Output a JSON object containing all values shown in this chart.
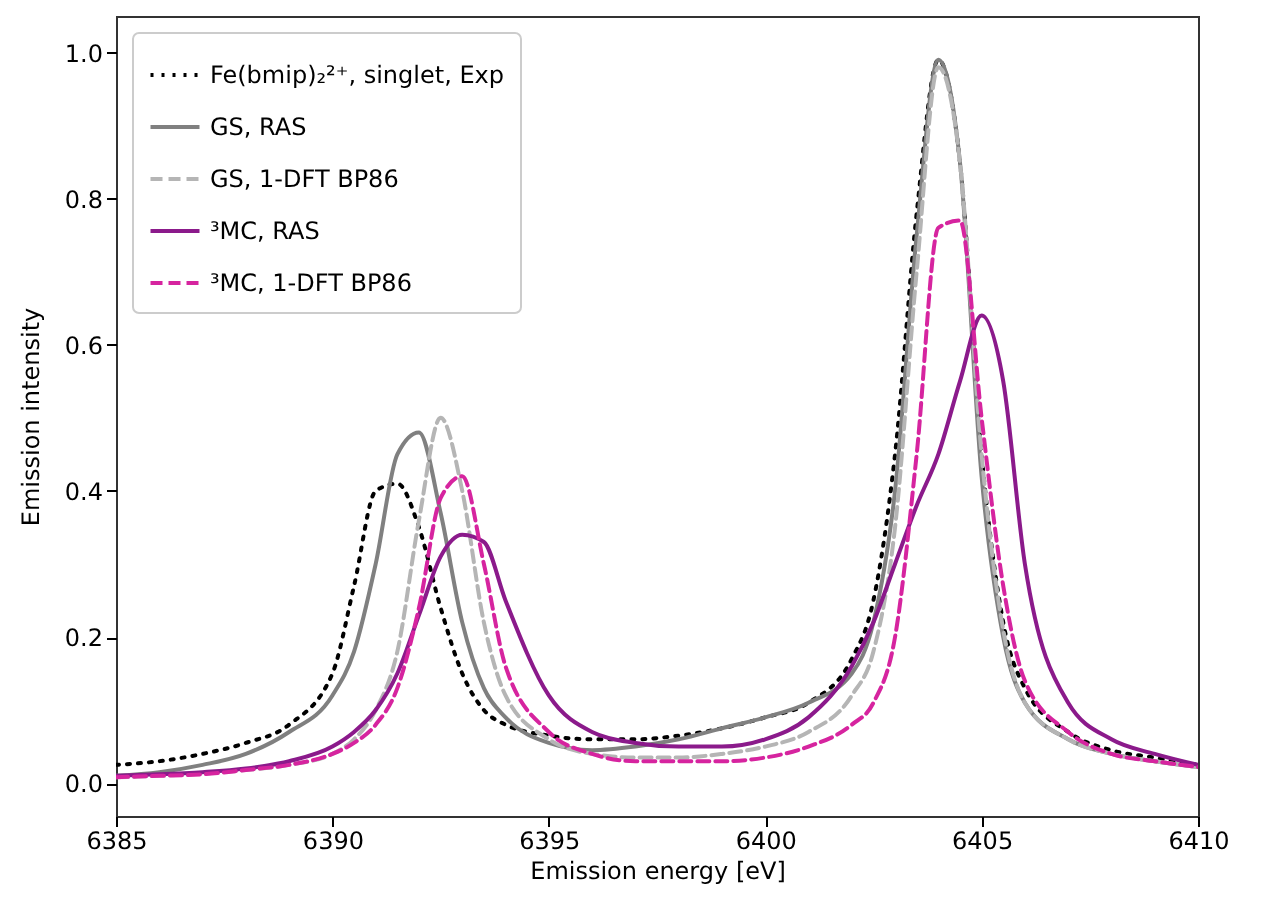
{
  "chart_data": {
    "type": "line",
    "xlabel": "Emission energy [eV]",
    "ylabel": "Emission intensity",
    "xlim": [
      6385,
      6410
    ],
    "xticks": [
      6385,
      6390,
      6395,
      6400,
      6405,
      6410
    ],
    "ylim": [
      -0.045,
      1.05
    ],
    "yticks": [
      {
        "value": 0,
        "label": "0.0"
      },
      {
        "value": 0.2,
        "label": "0.2"
      },
      {
        "value": 0.4,
        "label": "0.4"
      },
      {
        "value": 0.6,
        "label": "0.6"
      },
      {
        "value": 0.8,
        "label": "0.8"
      },
      {
        "value": 1,
        "label": "1.0"
      }
    ],
    "grid": false,
    "legend": "top left",
    "series": [
      {
        "name": "Fe(bmip)₂²⁺, singlet, Exp",
        "color": "#000000",
        "line_style": "dotted",
        "x": [
          6385,
          6386,
          6387,
          6388,
          6389,
          6390,
          6390.5,
          6391,
          6391.5,
          6392,
          6392.5,
          6393,
          6393.5,
          6394,
          6395,
          6396,
          6397,
          6398,
          6399,
          6400,
          6401,
          6402,
          6402.5,
          6403,
          6403.5,
          6404,
          6404.5,
          6405,
          6405.5,
          6406,
          6407,
          6408,
          6409,
          6410
        ],
        "values": [
          0.025,
          0.03,
          0.04,
          0.055,
          0.08,
          0.15,
          0.27,
          0.4,
          0.41,
          0.35,
          0.24,
          0.15,
          0.1,
          0.08,
          0.065,
          0.06,
          0.06,
          0.065,
          0.075,
          0.09,
          0.11,
          0.17,
          0.25,
          0.45,
          0.78,
          0.99,
          0.85,
          0.45,
          0.22,
          0.13,
          0.07,
          0.045,
          0.035,
          0.025
        ]
      },
      {
        "name": "GS, RAS",
        "color": "#808080",
        "line_style": "solid",
        "x": [
          6385,
          6386,
          6387,
          6388,
          6389,
          6390,
          6390.5,
          6391,
          6391.5,
          6392,
          6392.5,
          6393,
          6393.5,
          6394,
          6395,
          6396,
          6397,
          6398,
          6399,
          6400,
          6401,
          6402,
          6402.5,
          6403,
          6403.5,
          6404,
          6404.5,
          6405,
          6405.5,
          6406,
          6407,
          6408,
          6409,
          6410
        ],
        "values": [
          0.01,
          0.015,
          0.025,
          0.04,
          0.07,
          0.12,
          0.18,
          0.3,
          0.45,
          0.48,
          0.37,
          0.22,
          0.13,
          0.09,
          0.055,
          0.045,
          0.05,
          0.06,
          0.075,
          0.09,
          0.11,
          0.15,
          0.22,
          0.4,
          0.75,
          0.99,
          0.85,
          0.42,
          0.2,
          0.11,
          0.06,
          0.04,
          0.03,
          0.022
        ]
      },
      {
        "name": "GS, 1-DFT BP86",
        "color": "#b5b5b5",
        "line_style": "dashed",
        "x": [
          6385,
          6386,
          6387,
          6388,
          6389,
          6390,
          6390.5,
          6391,
          6391.5,
          6392,
          6392.5,
          6393,
          6393.5,
          6394,
          6395,
          6396,
          6397,
          6398,
          6399,
          6400,
          6401,
          6402,
          6402.5,
          6403,
          6403.5,
          6404,
          6404.5,
          6405,
          6405.5,
          6406,
          6407,
          6408,
          6409,
          6410
        ],
        "values": [
          0.008,
          0.01,
          0.013,
          0.018,
          0.025,
          0.04,
          0.06,
          0.1,
          0.18,
          0.36,
          0.5,
          0.4,
          0.22,
          0.12,
          0.06,
          0.04,
          0.035,
          0.035,
          0.04,
          0.05,
          0.07,
          0.12,
          0.18,
          0.35,
          0.7,
          0.98,
          0.85,
          0.45,
          0.21,
          0.11,
          0.06,
          0.04,
          0.03,
          0.022
        ]
      },
      {
        "name": "³MC, RAS",
        "color": "#8b1a8b",
        "line_style": "solid",
        "x": [
          6385,
          6386,
          6387,
          6388,
          6389,
          6390,
          6390.5,
          6391,
          6391.5,
          6392,
          6392.5,
          6393,
          6393.5,
          6394,
          6395,
          6396,
          6397,
          6398,
          6399,
          6400,
          6401,
          6402,
          6402.5,
          6403,
          6403.5,
          6404,
          6404.5,
          6405,
          6405.5,
          6406,
          6407,
          6408,
          6409,
          6410
        ],
        "values": [
          0.01,
          0.012,
          0.015,
          0.02,
          0.03,
          0.05,
          0.07,
          0.1,
          0.15,
          0.23,
          0.31,
          0.34,
          0.33,
          0.25,
          0.12,
          0.07,
          0.055,
          0.05,
          0.05,
          0.06,
          0.09,
          0.16,
          0.22,
          0.3,
          0.38,
          0.45,
          0.55,
          0.64,
          0.55,
          0.3,
          0.11,
          0.06,
          0.04,
          0.025
        ]
      },
      {
        "name": "³MC, 1-DFT BP86",
        "color": "#d6249f",
        "line_style": "dashed",
        "x": [
          6385,
          6386,
          6387,
          6388,
          6389,
          6390,
          6390.5,
          6391,
          6391.5,
          6392,
          6392.5,
          6393,
          6393.5,
          6394,
          6395,
          6396,
          6397,
          6398,
          6399,
          6400,
          6401,
          6402,
          6402.5,
          6403,
          6403.5,
          6404,
          6404.5,
          6405,
          6405.5,
          6406,
          6407,
          6408,
          6409,
          6410
        ],
        "values": [
          0.008,
          0.01,
          0.012,
          0.018,
          0.025,
          0.04,
          0.055,
          0.08,
          0.13,
          0.24,
          0.39,
          0.42,
          0.3,
          0.16,
          0.07,
          0.04,
          0.03,
          0.03,
          0.03,
          0.035,
          0.05,
          0.08,
          0.11,
          0.2,
          0.45,
          0.76,
          0.77,
          0.5,
          0.27,
          0.14,
          0.07,
          0.04,
          0.03,
          0.022
        ]
      }
    ]
  }
}
